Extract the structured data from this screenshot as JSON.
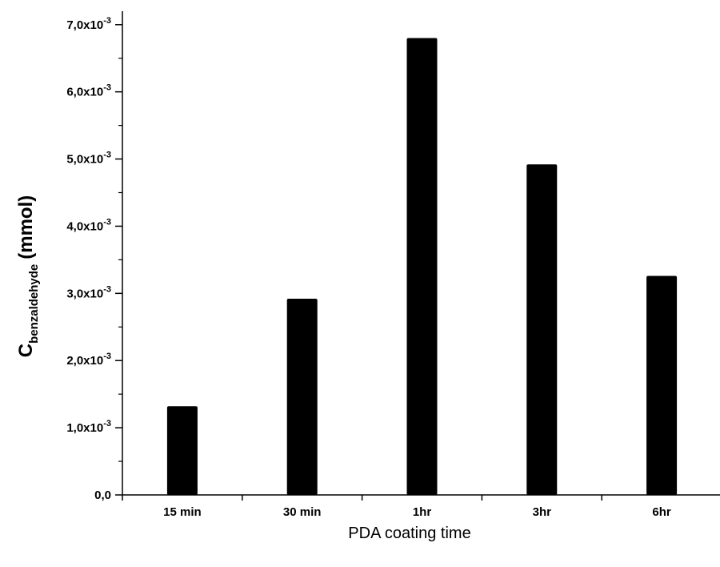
{
  "chart_data": {
    "type": "bar",
    "categories": [
      "15 min",
      "30 min",
      "1hr",
      "3hr",
      "6hr"
    ],
    "values": [
      0.00132,
      0.00292,
      0.0068,
      0.00492,
      0.00326
    ],
    "xlabel": "PDA coating time",
    "ylabel": {
      "main": "C",
      "subscript": "benzaldehyde",
      "unit": "(mmol)"
    },
    "ylim": [
      0,
      0.0072
    ],
    "yticks": [
      {
        "value": 0,
        "mantissa": "0,0",
        "exponent": ""
      },
      {
        "value": 0.001,
        "mantissa": "1,0x10",
        "exponent": "-3"
      },
      {
        "value": 0.002,
        "mantissa": "2,0x10",
        "exponent": "-3"
      },
      {
        "value": 0.003,
        "mantissa": "3,0x10",
        "exponent": "-3"
      },
      {
        "value": 0.004,
        "mantissa": "4,0x10",
        "exponent": "-3"
      },
      {
        "value": 0.005,
        "mantissa": "5,0x10",
        "exponent": "-3"
      },
      {
        "value": 0.006,
        "mantissa": "6,0x10",
        "exponent": "-3"
      },
      {
        "value": 0.007,
        "mantissa": "7,0x10",
        "exponent": "-3"
      }
    ],
    "grid": false,
    "legend": "none",
    "bar_color": "#000000"
  }
}
